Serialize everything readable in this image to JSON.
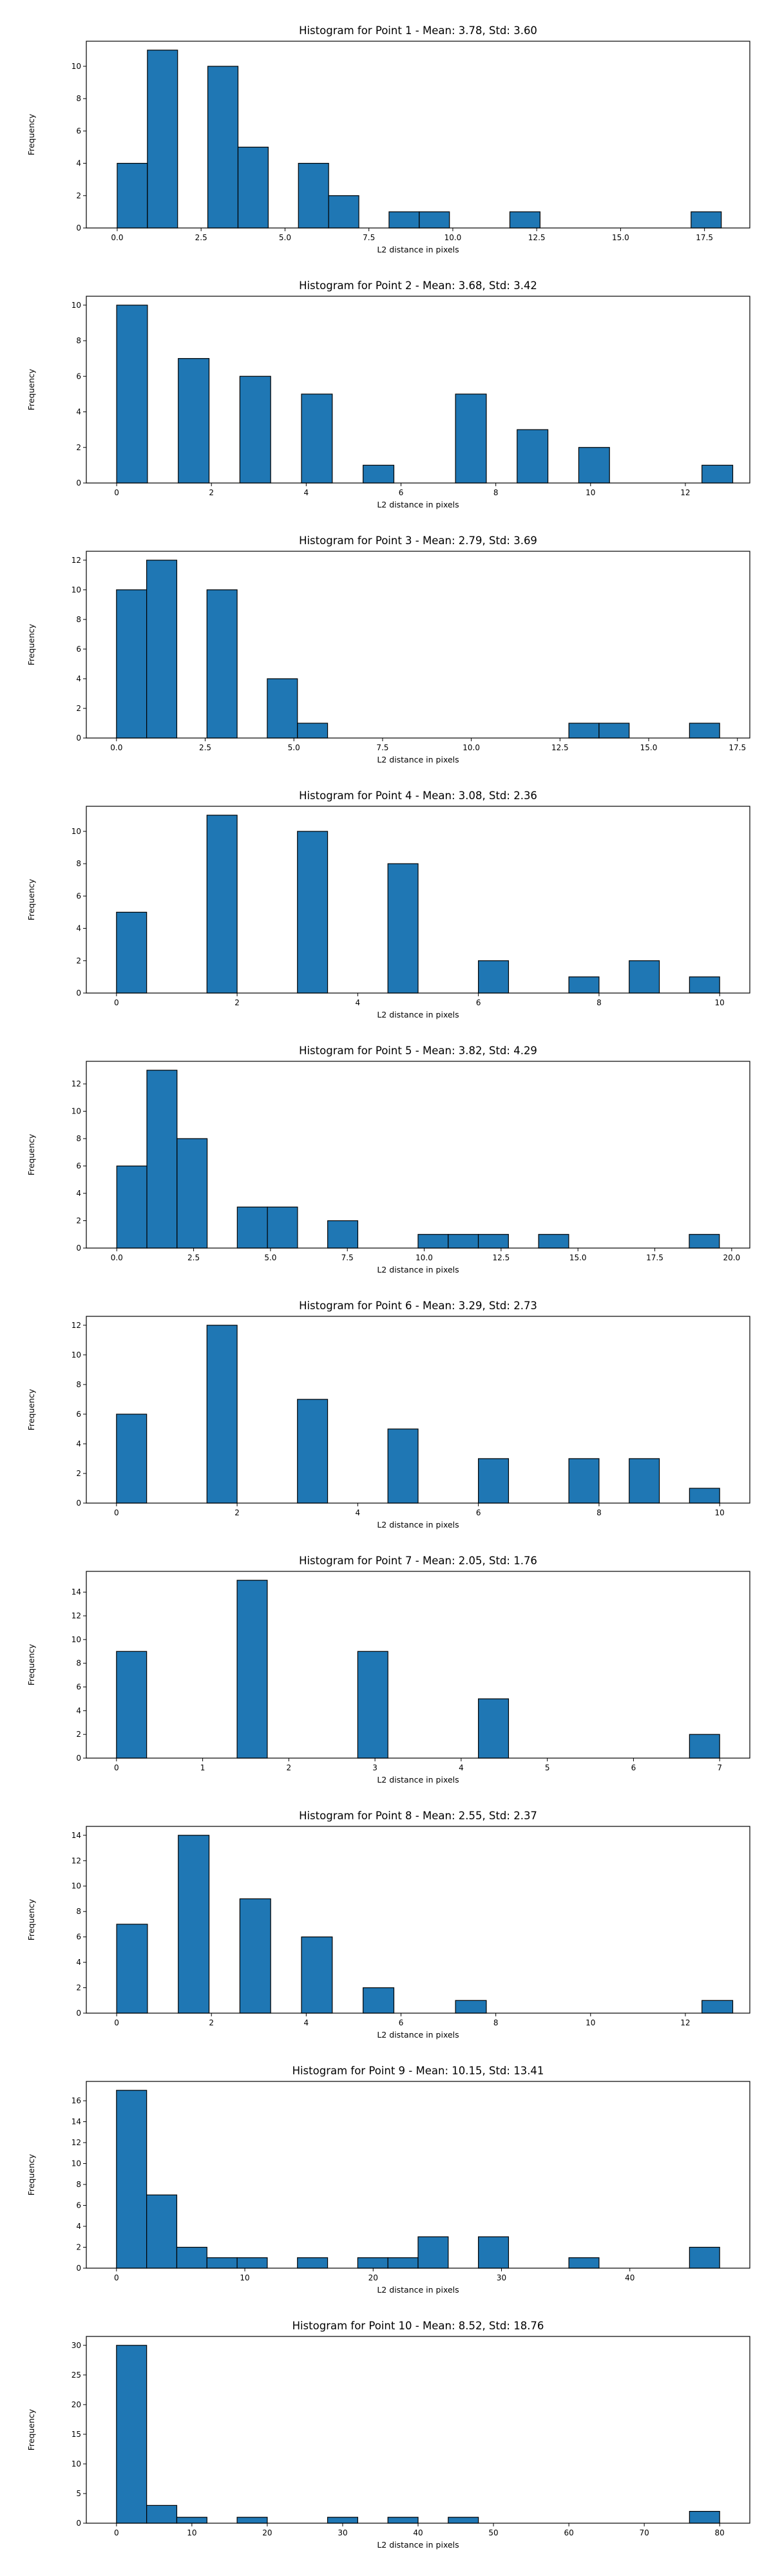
{
  "chart_data": [
    {
      "type": "bar",
      "title": "Histogram for Point 1 - Mean: 3.78, Std: 3.60",
      "xlabel": "L2 distance in pixels",
      "ylabel": "Frequency",
      "xlim": [
        -0.92,
        18.85
      ],
      "ylim": [
        0,
        11.55
      ],
      "xticks": [
        0.0,
        2.5,
        5.0,
        7.5,
        10.0,
        12.5,
        15.0,
        17.5
      ],
      "xtick_labels": [
        "0.0",
        "2.5",
        "5.0",
        "7.5",
        "10.0",
        "12.5",
        "15.0",
        "17.5"
      ],
      "yticks": [
        0,
        2,
        4,
        6,
        8,
        10
      ],
      "bin_edges": [
        0.0,
        0.9,
        1.8,
        2.7,
        3.6,
        4.5,
        5.4,
        6.3,
        7.2,
        8.1,
        9.0,
        9.9,
        10.8,
        11.7,
        12.6,
        13.5,
        14.4,
        15.3,
        16.2,
        17.1,
        18.0
      ],
      "counts": [
        4,
        11,
        0,
        10,
        5,
        0,
        4,
        2,
        0,
        1,
        1,
        0,
        0,
        1,
        0,
        0,
        0,
        0,
        0,
        1
      ]
    },
    {
      "type": "bar",
      "title": "Histogram for Point 2 - Mean: 3.68, Std: 3.42",
      "xlabel": "L2 distance in pixels",
      "ylabel": "Frequency",
      "xlim": [
        -0.64,
        13.36
      ],
      "ylim": [
        0,
        10.5
      ],
      "xticks": [
        0,
        2,
        4,
        6,
        8,
        10,
        12
      ],
      "xtick_labels": [
        "0",
        "2",
        "4",
        "6",
        "8",
        "10",
        "12"
      ],
      "yticks": [
        0,
        2,
        4,
        6,
        8,
        10
      ],
      "bin_edges": [
        0.0,
        0.65,
        1.3,
        1.95,
        2.6,
        3.25,
        3.9,
        4.55,
        5.2,
        5.85,
        6.5,
        7.15,
        7.8,
        8.45,
        9.1,
        9.75,
        10.4,
        11.05,
        11.7,
        12.35,
        13.0
      ],
      "counts": [
        10,
        0,
        7,
        0,
        6,
        0,
        5,
        0,
        1,
        0,
        0,
        5,
        0,
        3,
        0,
        2,
        0,
        0,
        0,
        1
      ]
    },
    {
      "type": "bar",
      "title": "Histogram for Point 3 - Mean: 2.79, Std: 3.69",
      "xlabel": "L2 distance in pixels",
      "ylabel": "Frequency",
      "xlim": [
        -0.85,
        17.85
      ],
      "ylim": [
        0,
        12.6
      ],
      "xticks": [
        0.0,
        2.5,
        5.0,
        7.5,
        10.0,
        12.5,
        15.0,
        17.5
      ],
      "xtick_labels": [
        "0.0",
        "2.5",
        "5.0",
        "7.5",
        "10.0",
        "12.5",
        "15.0",
        "17.5"
      ],
      "yticks": [
        0,
        2,
        4,
        6,
        8,
        10,
        12
      ],
      "bin_edges": [
        0.0,
        0.85,
        1.7,
        2.55,
        3.4,
        4.25,
        5.1,
        5.95,
        6.8,
        7.65,
        8.5,
        9.35,
        10.2,
        11.05,
        11.9,
        12.75,
        13.6,
        14.45,
        15.3,
        16.15,
        17.0
      ],
      "counts": [
        10,
        12,
        0,
        10,
        0,
        4,
        1,
        0,
        0,
        0,
        0,
        0,
        0,
        0,
        0,
        1,
        1,
        0,
        0,
        1
      ]
    },
    {
      "type": "bar",
      "title": "Histogram for Point 4 - Mean: 3.08, Std: 2.36",
      "xlabel": "L2 distance in pixels",
      "ylabel": "Frequency",
      "xlim": [
        -0.5,
        10.5
      ],
      "ylim": [
        0,
        11.55
      ],
      "xticks": [
        0,
        2,
        4,
        6,
        8,
        10
      ],
      "xtick_labels": [
        "0",
        "2",
        "4",
        "6",
        "8",
        "10"
      ],
      "yticks": [
        0,
        2,
        4,
        6,
        8,
        10
      ],
      "bin_edges": [
        0.0,
        0.5,
        1.0,
        1.5,
        2.0,
        2.5,
        3.0,
        3.5,
        4.0,
        4.5,
        5.0,
        5.5,
        6.0,
        6.5,
        7.0,
        7.5,
        8.0,
        8.5,
        9.0,
        9.5,
        10.0
      ],
      "counts": [
        5,
        0,
        0,
        11,
        0,
        0,
        10,
        0,
        0,
        8,
        0,
        0,
        2,
        0,
        0,
        1,
        0,
        2,
        0,
        1
      ]
    },
    {
      "type": "bar",
      "title": "Histogram for Point 5 - Mean: 3.82, Std: 4.29",
      "xlabel": "L2 distance in pixels",
      "ylabel": "Frequency",
      "xlim": [
        -0.99,
        20.59
      ],
      "ylim": [
        0,
        13.65
      ],
      "xticks": [
        0.0,
        2.5,
        5.0,
        7.5,
        10.0,
        12.5,
        15.0,
        17.5,
        20.0
      ],
      "xtick_labels": [
        "0.0",
        "2.5",
        "5.0",
        "7.5",
        "10.0",
        "12.5",
        "15.0",
        "17.5",
        "20.0"
      ],
      "yticks": [
        0,
        2,
        4,
        6,
        8,
        10,
        12
      ],
      "bin_edges": [
        0.0,
        0.98,
        1.96,
        2.94,
        3.92,
        4.9,
        5.88,
        6.86,
        7.84,
        8.82,
        9.8,
        10.78,
        11.76,
        12.74,
        13.72,
        14.7,
        15.68,
        16.66,
        17.64,
        18.62,
        19.6
      ],
      "counts": [
        6,
        13,
        8,
        0,
        3,
        3,
        0,
        2,
        0,
        0,
        1,
        1,
        1,
        0,
        1,
        0,
        0,
        0,
        0,
        1
      ]
    },
    {
      "type": "bar",
      "title": "Histogram for Point 6 - Mean: 3.29, Std: 2.73",
      "xlabel": "L2 distance in pixels",
      "ylabel": "Frequency",
      "xlim": [
        -0.5,
        10.5
      ],
      "ylim": [
        0,
        12.6
      ],
      "xticks": [
        0,
        2,
        4,
        6,
        8,
        10
      ],
      "xtick_labels": [
        "0",
        "2",
        "4",
        "6",
        "8",
        "10"
      ],
      "yticks": [
        0,
        2,
        4,
        6,
        8,
        10,
        12
      ],
      "bin_edges": [
        0.0,
        0.5,
        1.0,
        1.5,
        2.0,
        2.5,
        3.0,
        3.5,
        4.0,
        4.5,
        5.0,
        5.5,
        6.0,
        6.5,
        7.0,
        7.5,
        8.0,
        8.5,
        9.0,
        9.5,
        10.0
      ],
      "counts": [
        6,
        0,
        0,
        12,
        0,
        0,
        7,
        0,
        0,
        5,
        0,
        0,
        3,
        0,
        0,
        3,
        0,
        3,
        0,
        1
      ]
    },
    {
      "type": "bar",
      "title": "Histogram for Point 7 - Mean: 2.05, Std: 1.76",
      "xlabel": "L2 distance in pixels",
      "ylabel": "Frequency",
      "xlim": [
        -0.35,
        7.35
      ],
      "ylim": [
        0,
        15.75
      ],
      "xticks": [
        0,
        1,
        2,
        3,
        4,
        5,
        6,
        7
      ],
      "xtick_labels": [
        "0",
        "1",
        "2",
        "3",
        "4",
        "5",
        "6",
        "7"
      ],
      "yticks": [
        0,
        2,
        4,
        6,
        8,
        10,
        12,
        14
      ],
      "bin_edges": [
        0.0,
        0.35,
        0.7,
        1.05,
        1.4,
        1.75,
        2.1,
        2.45,
        2.8,
        3.15,
        3.5,
        3.85,
        4.2,
        4.55,
        4.9,
        5.25,
        5.6,
        5.95,
        6.3,
        6.65,
        7.0
      ],
      "counts": [
        9,
        0,
        0,
        0,
        15,
        0,
        0,
        0,
        9,
        0,
        0,
        0,
        5,
        0,
        0,
        0,
        0,
        0,
        0,
        2
      ]
    },
    {
      "type": "bar",
      "title": "Histogram for Point 8 - Mean: 2.55, Std: 2.37",
      "xlabel": "L2 distance in pixels",
      "ylabel": "Frequency",
      "xlim": [
        -0.64,
        13.36
      ],
      "ylim": [
        0,
        14.7
      ],
      "xticks": [
        0,
        2,
        4,
        6,
        8,
        10,
        12
      ],
      "xtick_labels": [
        "0",
        "2",
        "4",
        "6",
        "8",
        "10",
        "12"
      ],
      "yticks": [
        0,
        2,
        4,
        6,
        8,
        10,
        12,
        14
      ],
      "bin_edges": [
        0.0,
        0.65,
        1.3,
        1.95,
        2.6,
        3.25,
        3.9,
        4.55,
        5.2,
        5.85,
        6.5,
        7.15,
        7.8,
        8.45,
        9.1,
        9.75,
        10.4,
        11.05,
        11.7,
        12.35,
        13.0
      ],
      "counts": [
        7,
        0,
        14,
        0,
        9,
        0,
        6,
        0,
        2,
        0,
        0,
        1,
        0,
        0,
        0,
        0,
        0,
        0,
        0,
        1
      ]
    },
    {
      "type": "bar",
      "title": "Histogram for Point 9 - Mean: 10.15, Std: 13.41",
      "xlabel": "L2 distance in pixels",
      "ylabel": "Frequency",
      "xlim": [
        -2.35,
        49.35
      ],
      "ylim": [
        0,
        17.85
      ],
      "xticks": [
        0,
        10,
        20,
        30,
        40
      ],
      "xtick_labels": [
        "0",
        "10",
        "20",
        "30",
        "40"
      ],
      "yticks": [
        0,
        2,
        4,
        6,
        8,
        10,
        12,
        14,
        16
      ],
      "bin_edges": [
        0.0,
        2.35,
        4.7,
        7.05,
        9.4,
        11.75,
        14.1,
        16.45,
        18.8,
        21.15,
        23.5,
        25.85,
        28.2,
        30.55,
        32.9,
        35.25,
        37.6,
        39.95,
        42.3,
        44.65,
        47.0
      ],
      "counts": [
        17,
        7,
        2,
        1,
        1,
        0,
        1,
        0,
        1,
        1,
        3,
        0,
        3,
        0,
        0,
        1,
        0,
        0,
        0,
        2
      ]
    },
    {
      "type": "bar",
      "title": "Histogram for Point 10 - Mean: 8.52, Std: 18.76",
      "xlabel": "L2 distance in pixels",
      "ylabel": "Frequency",
      "xlim": [
        -4.0,
        84.0
      ],
      "ylim": [
        0,
        31.5
      ],
      "xticks": [
        0,
        10,
        20,
        30,
        40,
        50,
        60,
        70,
        80
      ],
      "xtick_labels": [
        "0",
        "10",
        "20",
        "30",
        "40",
        "50",
        "60",
        "70",
        "80"
      ],
      "yticks": [
        0,
        5,
        10,
        15,
        20,
        25,
        30
      ],
      "bin_edges": [
        0,
        4,
        8,
        12,
        16,
        20,
        24,
        28,
        32,
        36,
        40,
        44,
        48,
        52,
        56,
        60,
        64,
        68,
        72,
        76,
        80
      ],
      "counts": [
        30,
        3,
        1,
        0,
        1,
        0,
        0,
        1,
        0,
        1,
        0,
        1,
        0,
        0,
        0,
        0,
        0,
        0,
        0,
        2
      ]
    }
  ],
  "colors": {
    "bar_fill": "#1f77b4",
    "bar_edge": "#000000",
    "axis": "#000000",
    "background": "#ffffff"
  }
}
